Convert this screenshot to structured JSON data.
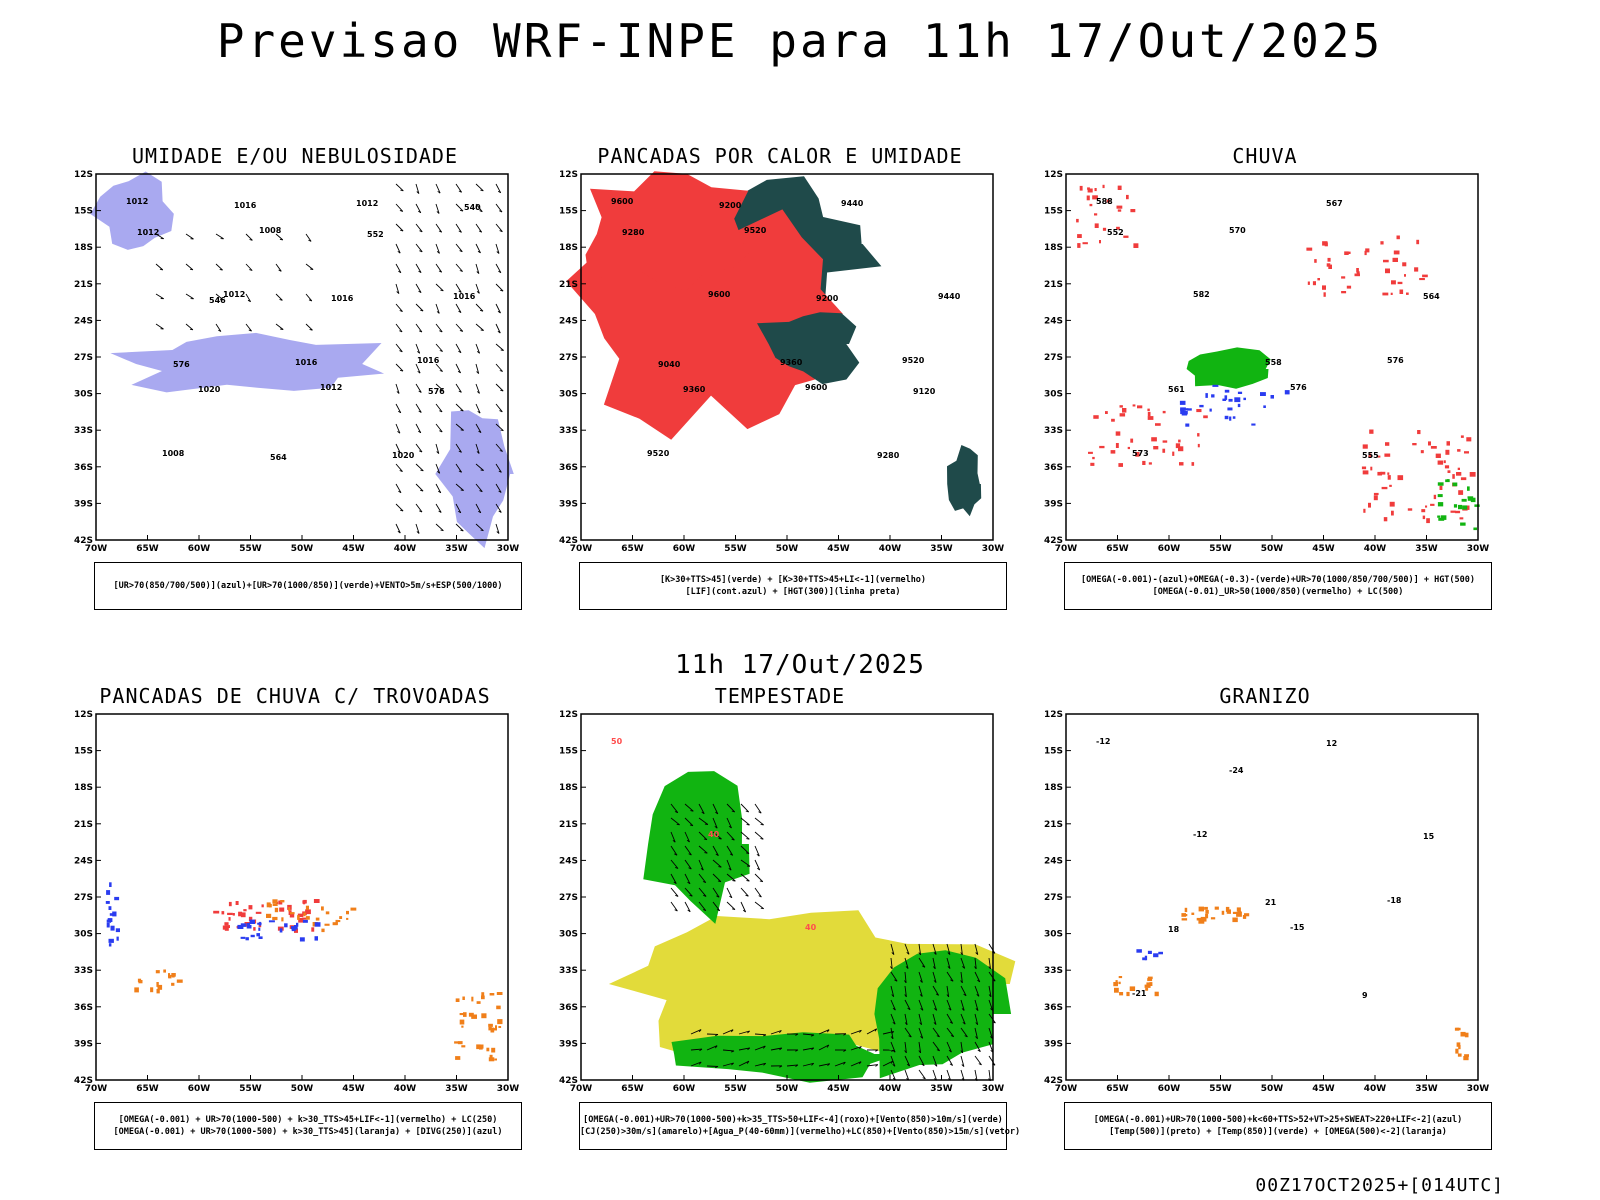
{
  "header": {
    "title": "Previsao WRF-INPE  para 11h 17/Out/2025",
    "mid_title": "11h 17/Out/2025",
    "footer": "00Z17OCT2025+[014UTC]"
  },
  "axes": {
    "lat_ticks": [
      "12S",
      "15S",
      "18S",
      "21S",
      "24S",
      "27S",
      "30S",
      "33S",
      "36S",
      "39S",
      "42S"
    ],
    "lon_ticks": [
      "70W",
      "65W",
      "60W",
      "55W",
      "50W",
      "45W",
      "40W",
      "35W",
      "30W"
    ]
  },
  "colors": {
    "blue_shade": "#a9a9f0",
    "green_line": "#22c422",
    "red_dash": "#ff3333",
    "red_fill": "#f03c3c",
    "dark_teal": "#1f4a4a",
    "yellow_fill": "#e2db3a",
    "green_fill": "#11b411",
    "orange": "#f07f1a",
    "blue": "#2a3cf0"
  },
  "chart_data": [
    {
      "type": "map",
      "title": "UMIDADE E/OU NEBULOSIDADE",
      "legend": [
        "[UR>70(850/700/500)](azul)+[UR>70(1000/850)](verde)+VENTO>5m/s+ESP(500/1000)"
      ],
      "contour_labels": [
        "1012",
        "1012",
        "1012",
        "1016",
        "1008",
        "1008",
        "1012",
        "1016",
        "1020",
        "1016",
        "1020",
        "1012",
        "1016",
        "1016",
        "576",
        "576",
        "564",
        "552",
        "540",
        "546"
      ]
    },
    {
      "type": "map",
      "title": "PANCADAS POR CALOR E UMIDADE",
      "legend": [
        "[K>30+TTS>45](verde) + [K>30+TTS>45+LI<-1](vermelho)",
        "[LIF](cont.azul) + [HGT(300)](linha preta)"
      ],
      "contour_labels": [
        "9600",
        "9600",
        "9600",
        "9520",
        "9520",
        "9520",
        "9440",
        "9440",
        "9360",
        "9360",
        "9280",
        "9280",
        "9200",
        "9200",
        "9120",
        "9040"
      ]
    },
    {
      "type": "map",
      "title": "CHUVA",
      "legend": [
        "[OMEGA(-0.001)-(azul)+OMEGA(-0.3)-(verde)+UR>70(1000/850/700/500)] + HGT(500)",
        "[OMEGA(-0.01)_UR>50(1000/850)(vermelho) + LC(500)"
      ],
      "contour_labels": [
        "588",
        "582",
        "576",
        "576",
        "573",
        "570",
        "567",
        "564",
        "561",
        "558",
        "555",
        "552"
      ]
    },
    {
      "type": "map",
      "title": "PANCADAS DE CHUVA C/ TROVOADAS",
      "legend": [
        "[OMEGA(-0.001) + UR>70(1000-500) + k>30_TTS>45+LIF<-1](vermelho) + LC(250)",
        "[OMEGA(-0.001) + UR>70(1000-500) + k>30_TTS>45](laranja) + [DIVG(250)](azul)"
      ],
      "contour_labels": []
    },
    {
      "type": "map",
      "title": "TEMPESTADE",
      "legend": [
        "[OMEGA(-0.001)+UR>70(1000-500)+k>35_TTS>50+LIF<-4](roxo)+[Vento(850)>10m/s](verde)",
        "[CJ(250)>30m/s](amarelo)+[Agua_P(40-60mm)](vermelho)+LC(850)+[Vento(850)>15m/s](vetor)"
      ],
      "contour_labels": [
        "50",
        "40",
        "40"
      ]
    },
    {
      "type": "map",
      "title": "GRANIZO",
      "legend": [
        "[OMEGA(-0.001)+UR>70(1000-500)+k<60+TTS>52+VT>25+SWEAT>220+LIF<-2](azul)",
        "[Temp(500)](preto) + [Temp(850)](verde) + [OMEGA(500)<-2](laranja)"
      ],
      "contour_labels": [
        "-12",
        "-12",
        "-15",
        "-18",
        "-21",
        "-24",
        "12",
        "15",
        "18",
        "21",
        "9"
      ]
    }
  ]
}
